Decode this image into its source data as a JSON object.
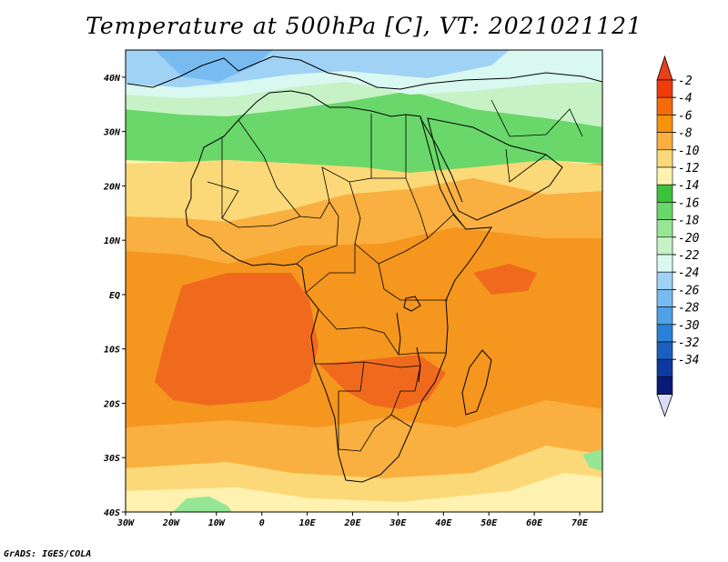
{
  "title": "Temperature at 500hPa [C], VT: 2021021121",
  "credit": "GrADS: IGES/COLA",
  "map": {
    "lon_labels": [
      "30W",
      "20W",
      "10W",
      "0",
      "10E",
      "20E",
      "30E",
      "40E",
      "50E",
      "60E",
      "70E"
    ],
    "lat_labels": [
      "40N",
      "30N",
      "20N",
      "10N",
      "EQ",
      "10S",
      "20S",
      "30S",
      "40S"
    ],
    "lon_range": [
      -30,
      75
    ],
    "lat_range": [
      -40,
      45
    ]
  },
  "colorbar": {
    "labels": [
      "-2",
      "-4",
      "-6",
      "-8",
      "-10",
      "-12",
      "-14",
      "-16",
      "-18",
      "-20",
      "-22",
      "-24",
      "-26",
      "-28",
      "-30",
      "-32",
      "-34"
    ],
    "colors": [
      "#f03c0a",
      "#f56a0a",
      "#f7920d",
      "#f9b040",
      "#fcd978",
      "#fff2b0",
      "#3cc23c",
      "#6ad76a",
      "#96e696",
      "#c6f2c6",
      "#d9f8f0",
      "#a0d2f5",
      "#78bbf0",
      "#50a2e6",
      "#2a82d8",
      "#1a5fc0",
      "#0d3aa0",
      "#0a1a78"
    ],
    "upper_arrow_color": "#e8401a",
    "lower_arrow_color": "#dcdcfa"
  },
  "field_colors": {
    "deep_orange": "#f06a1e",
    "orange": "#f5961e",
    "light_orange": "#f9b040",
    "yellow": "#fcd978",
    "pale_yellow": "#fff2b0",
    "green": "#3cc23c",
    "mid_green": "#6ad76a",
    "light_green": "#96e696",
    "pale_green": "#c6f2c6",
    "cyan": "#d9f8f0",
    "light_blue": "#a0d2f5",
    "blue": "#78bbf0"
  }
}
